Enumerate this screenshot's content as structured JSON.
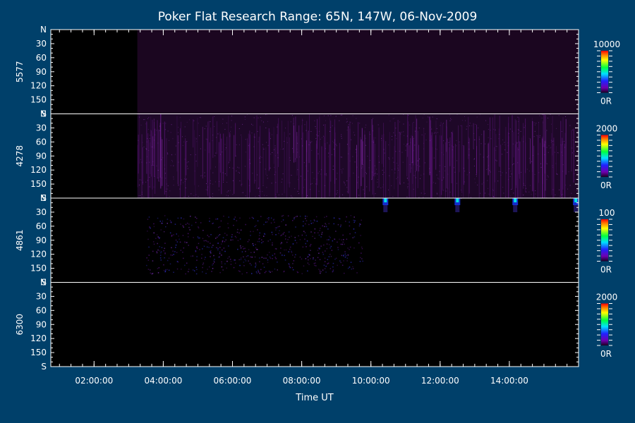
{
  "title": "Poker Flat Research Range: 65N, 147W, 06-Nov-2009",
  "xlabel": "Time UT",
  "x_ticks": [
    "02:00:00",
    "04:00:00",
    "06:00:00",
    "08:00:00",
    "10:00:00",
    "12:00:00",
    "14:00:00"
  ],
  "y_ticks": [
    "N",
    "30",
    "60",
    "90",
    "120",
    "150",
    "S"
  ],
  "panels": [
    {
      "wavelength": "5577",
      "scale_max": "10000",
      "scale_min": "0R"
    },
    {
      "wavelength": "4278",
      "scale_max": "2000",
      "scale_min": "0R"
    },
    {
      "wavelength": "4861",
      "scale_max": "100",
      "scale_min": "0R"
    },
    {
      "wavelength": "6300",
      "scale_max": "2000",
      "scale_min": "0R"
    }
  ],
  "chart_data": {
    "type": "heatmap",
    "title": "Poker Flat Research Range: 65N, 147W, 06-Nov-2009",
    "xlabel": "Time UT",
    "x_range": [
      "00:45:00",
      "16:00:00"
    ],
    "y_range": [
      "N",
      "S"
    ],
    "panels": [
      {
        "ylabel": "5577",
        "colorbar_range": [
          0,
          10000
        ],
        "data_start": "03:15:00",
        "data_end": "16:00:00",
        "level": "very low, dark purple"
      },
      {
        "ylabel": "4278",
        "colorbar_range": [
          0,
          2000
        ],
        "data_start": "03:15:00",
        "data_end": "16:00:00",
        "level": "low, purple streaks"
      },
      {
        "ylabel": "4861",
        "colorbar_range": [
          0,
          100
        ],
        "data_start": "03:30:00",
        "data_end": "09:45:00",
        "level": "sparse dots; bright events near 10:25, 12:30, 14:10, 15:55 at northern edge"
      },
      {
        "ylabel": "6300",
        "colorbar_range": [
          0,
          2000
        ],
        "level": "no signal"
      }
    ]
  },
  "colors": {
    "background": "#00406a",
    "plot_bg": "#000000",
    "purple_dim": "#2a0a33",
    "purple": "#6a1a8a",
    "blue": "#1a3aff",
    "cyan": "#00e0e0"
  }
}
